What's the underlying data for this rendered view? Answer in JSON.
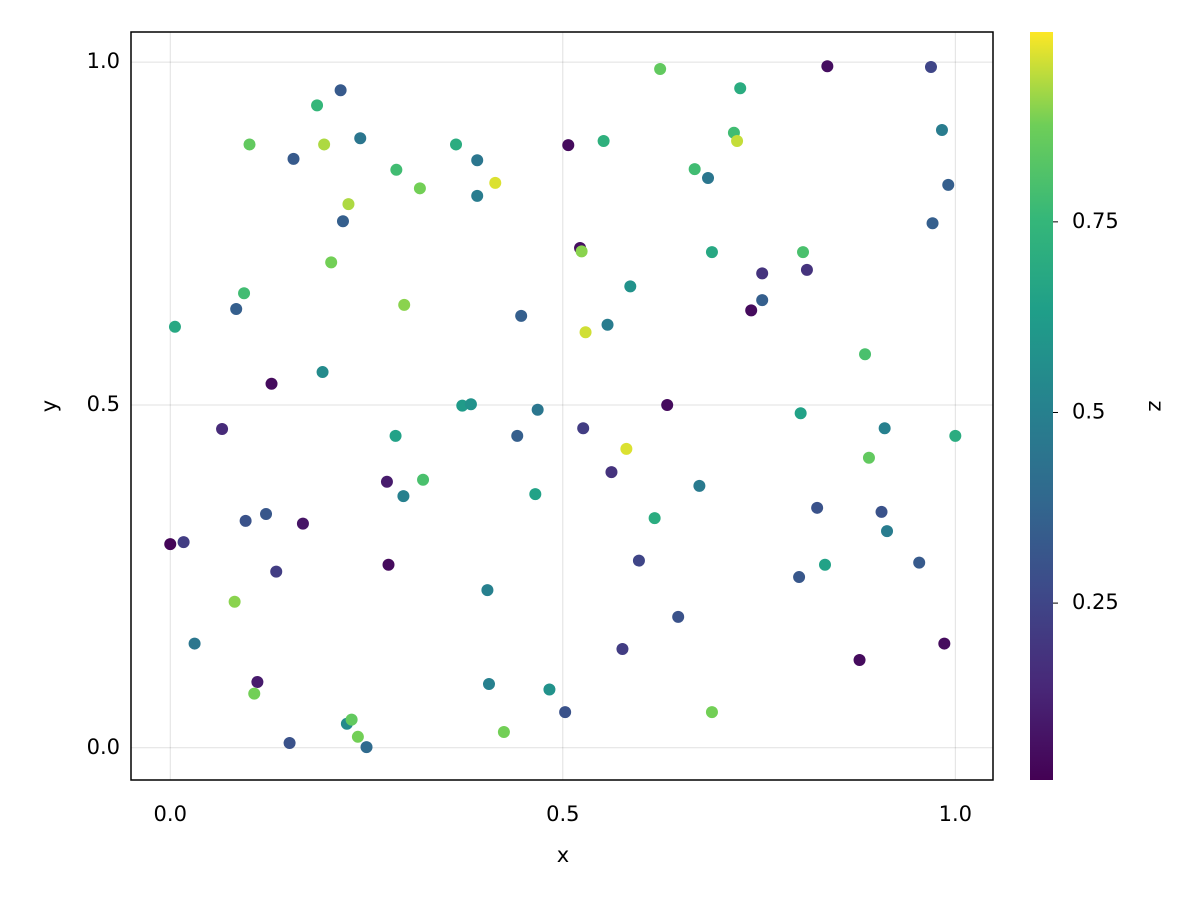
{
  "chart_data": {
    "type": "scatter",
    "xlabel": "x",
    "ylabel": "y",
    "colorbar_label": "z",
    "colormap": "viridis",
    "x": [
      0,
      0.017,
      0.006,
      0.031,
      0.066,
      0.082,
      0.084,
      0.094,
      0.096,
      0.101,
      0.107,
      0.111,
      0.122,
      0.129,
      0.135,
      0.152,
      0.157,
      0.169,
      0.187,
      0.194,
      0.196,
      0.205,
      0.217,
      0.22,
      0.225,
      0.227,
      0.231,
      0.239,
      0.242,
      0.25,
      0.276,
      0.278,
      0.287,
      0.288,
      0.297,
      0.298,
      0.318,
      0.322,
      0.364,
      0.372,
      0.383,
      0.391,
      0.391,
      0.404,
      0.406,
      0.414,
      0.425,
      0.442,
      0.447,
      0.465,
      0.468,
      0.483,
      0.503,
      0.507,
      0.522,
      0.524,
      0.526,
      0.529,
      0.552,
      0.557,
      0.562,
      0.576,
      0.581,
      0.586,
      0.597,
      0.617,
      0.624,
      0.633,
      0.647,
      0.668,
      0.674,
      0.685,
      0.69,
      0.69,
      0.718,
      0.722,
      0.726,
      0.74,
      0.754,
      0.754,
      0.801,
      0.803,
      0.806,
      0.811,
      0.824,
      0.834,
      0.837,
      0.878,
      0.885,
      0.89,
      0.906,
      0.91,
      0.913,
      0.954,
      0.969,
      0.971,
      0.983,
      0.986,
      0.991,
      1.0
    ],
    "y": [
      0.297,
      0.3,
      0.614,
      0.152,
      0.465,
      0.213,
      0.64,
      0.663,
      0.331,
      0.88,
      0.079,
      0.096,
      0.341,
      0.531,
      0.257,
      0.007,
      0.859,
      0.327,
      0.937,
      0.548,
      0.88,
      0.708,
      0.959,
      0.768,
      0.035,
      0.793,
      0.041,
      0.016,
      0.889,
      0.001,
      0.388,
      0.267,
      0.455,
      0.843,
      0.367,
      0.646,
      0.816,
      0.391,
      0.88,
      0.499,
      0.501,
      0.857,
      0.805,
      0.23,
      0.093,
      0.824,
      0.023,
      0.455,
      0.63,
      0.37,
      0.493,
      0.085,
      0.052,
      0.879,
      0.729,
      0.724,
      0.466,
      0.606,
      0.885,
      0.617,
      0.402,
      0.144,
      0.436,
      0.673,
      0.273,
      0.335,
      0.99,
      0.5,
      0.191,
      0.844,
      0.382,
      0.831,
      0.723,
      0.052,
      0.897,
      0.885,
      0.962,
      0.638,
      0.692,
      0.653,
      0.249,
      0.488,
      0.723,
      0.697,
      0.35,
      0.267,
      0.994,
      0.128,
      0.574,
      0.423,
      0.344,
      0.466,
      0.316,
      0.27,
      0.993,
      0.765,
      0.901,
      0.152,
      0.821,
      0.455
    ],
    "z": [
      0.03,
      0.22,
      0.68,
      0.45,
      0.15,
      0.9,
      0.35,
      0.78,
      0.3,
      0.85,
      0.88,
      0.1,
      0.32,
      0.05,
      0.22,
      0.3,
      0.33,
      0.08,
      0.75,
      0.55,
      0.93,
      0.88,
      0.33,
      0.35,
      0.55,
      0.93,
      0.85,
      0.88,
      0.45,
      0.4,
      0.1,
      0.05,
      0.65,
      0.78,
      0.5,
      0.9,
      0.88,
      0.8,
      0.7,
      0.62,
      0.58,
      0.45,
      0.48,
      0.5,
      0.5,
      0.97,
      0.88,
      0.35,
      0.35,
      0.65,
      0.45,
      0.58,
      0.3,
      0.05,
      0.06,
      0.9,
      0.22,
      0.96,
      0.72,
      0.48,
      0.18,
      0.22,
      0.97,
      0.58,
      0.25,
      0.7,
      0.85,
      0.05,
      0.3,
      0.78,
      0.47,
      0.45,
      0.68,
      0.88,
      0.78,
      0.95,
      0.7,
      0.05,
      0.18,
      0.35,
      0.32,
      0.65,
      0.8,
      0.18,
      0.3,
      0.65,
      0.06,
      0.05,
      0.8,
      0.85,
      0.3,
      0.5,
      0.48,
      0.33,
      0.25,
      0.35,
      0.48,
      0.05,
      0.35,
      0.7
    ],
    "xlim": [
      -0.05,
      1.048
    ],
    "ylim": [
      -0.047,
      1.044
    ],
    "clim": [
      0.018,
      0.999
    ],
    "xticks": [
      {
        "value": 0,
        "label": "0.0"
      },
      0.5,
      {
        "value": 1,
        "label": "1.0"
      }
    ],
    "yticks": [
      {
        "value": 0,
        "label": "0.0"
      },
      0.5,
      {
        "value": 1,
        "label": "1.0"
      }
    ],
    "cticks": [
      0.25,
      0.5,
      0.75
    ],
    "grid": true
  }
}
